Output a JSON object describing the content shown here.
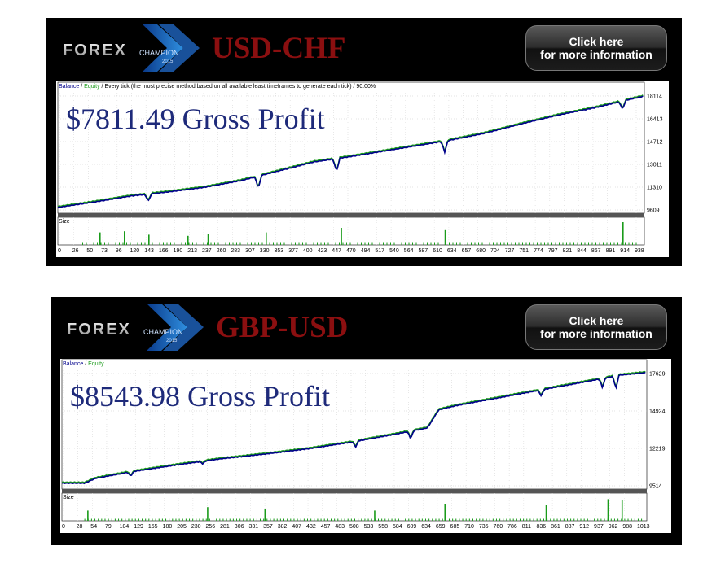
{
  "banners": [
    {
      "logo_text": "FOREX",
      "logo_sub": "CHAMPION",
      "logo_year": "2015",
      "pair": "USD-CHF",
      "cta_line1": "Click here",
      "cta_line2": "for more information",
      "header_balance": "Balance",
      "header_equity": "Equity",
      "header_rest": " / Every tick (the most precise method based on all available least timeframes to generate each tick) / 90.00%",
      "gross_profit": "$7811.49 Gross Profit",
      "size_label": "Size"
    },
    {
      "logo_text": "FOREX",
      "logo_sub": "CHAMPION",
      "logo_year": "2015",
      "pair": "GBP-USD",
      "cta_line1": "Click here",
      "cta_line2": "for more information",
      "header_balance": "Balance",
      "header_equity": "Equity",
      "header_rest": "",
      "gross_profit": "$8543.98 Gross Profit",
      "size_label": "Size"
    }
  ],
  "colors": {
    "balance": "#00008b",
    "equity": "#1a9b1a",
    "size_bar": "#1a9b1a",
    "pair": "#8b0f10",
    "gross_profit": "#1e2a7a"
  },
  "chart_data": [
    {
      "type": "line",
      "ylim": [
        9609,
        18114
      ],
      "y_ticks": [
        "18114",
        "16413",
        "14712",
        "13011",
        "11310",
        "9609"
      ],
      "x_ticks": [
        "0",
        "26",
        "50",
        "73",
        "96",
        "120",
        "143",
        "166",
        "190",
        "213",
        "237",
        "260",
        "283",
        "307",
        "330",
        "353",
        "377",
        "400",
        "423",
        "447",
        "470",
        "494",
        "517",
        "540",
        "564",
        "587",
        "610",
        "634",
        "657",
        "680",
        "704",
        "727",
        "751",
        "774",
        "797",
        "821",
        "844",
        "867",
        "891",
        "914",
        "938"
      ],
      "xlim": [
        0,
        960
      ],
      "series": [
        {
          "name": "Balance",
          "x": [
            0,
            60,
            120,
            180,
            240,
            300,
            330,
            360,
            420,
            480,
            540,
            600,
            640,
            700,
            760,
            820,
            880,
            930,
            960
          ],
          "values": [
            9800,
            10200,
            10650,
            10950,
            11300,
            11800,
            12150,
            12500,
            13200,
            13600,
            14050,
            14500,
            14800,
            15350,
            16050,
            16700,
            17250,
            17800,
            18114
          ]
        }
      ],
      "drawdowns": [
        {
          "x": 148,
          "low": 10250
        },
        {
          "x": 328,
          "low": 11200
        },
        {
          "x": 456,
          "low": 12450
        },
        {
          "x": 633,
          "low": 13900
        },
        {
          "x": 924,
          "low": 17100
        }
      ],
      "size_spikes": [
        {
          "x": 68,
          "h": 0.55
        },
        {
          "x": 108,
          "h": 0.6
        },
        {
          "x": 148,
          "h": 0.45
        },
        {
          "x": 212,
          "h": 0.4
        },
        {
          "x": 245,
          "h": 0.5
        },
        {
          "x": 340,
          "h": 0.55
        },
        {
          "x": 463,
          "h": 0.75
        },
        {
          "x": 633,
          "h": 0.65
        },
        {
          "x": 924,
          "h": 1.0
        }
      ]
    },
    {
      "type": "line",
      "ylim": [
        9514,
        17629
      ],
      "y_ticks": [
        "17629",
        "14924",
        "12219",
        "9514"
      ],
      "x_ticks": [
        "0",
        "28",
        "54",
        "79",
        "104",
        "129",
        "155",
        "180",
        "205",
        "230",
        "256",
        "281",
        "306",
        "331",
        "357",
        "382",
        "407",
        "432",
        "457",
        "483",
        "508",
        "533",
        "558",
        "584",
        "609",
        "634",
        "659",
        "685",
        "710",
        "735",
        "760",
        "786",
        "811",
        "836",
        "861",
        "887",
        "912",
        "937",
        "962",
        "988",
        "1013"
      ],
      "xlim": [
        0,
        1040
      ],
      "series": [
        {
          "name": "Balance",
          "x": [
            0,
            40,
            60,
            120,
            200,
            280,
            360,
            440,
            520,
            600,
            650,
            670,
            700,
            780,
            860,
            940,
            990,
            1040
          ],
          "values": [
            9700,
            9700,
            10050,
            10500,
            11000,
            11450,
            11800,
            12200,
            12700,
            13300,
            13700,
            15000,
            15300,
            15900,
            16500,
            17100,
            17500,
            17700
          ]
        }
      ],
      "drawdowns": [
        {
          "x": 122,
          "low": 10200
        },
        {
          "x": 250,
          "low": 11100
        },
        {
          "x": 522,
          "low": 12300
        },
        {
          "x": 620,
          "low": 12900
        },
        {
          "x": 852,
          "low": 16000
        },
        {
          "x": 961,
          "low": 16600
        },
        {
          "x": 985,
          "low": 16500
        }
      ],
      "size_spikes": [
        {
          "x": 45,
          "h": 0.45
        },
        {
          "x": 258,
          "h": 0.6
        },
        {
          "x": 360,
          "h": 0.5
        },
        {
          "x": 555,
          "h": 0.45
        },
        {
          "x": 680,
          "h": 0.75
        },
        {
          "x": 860,
          "h": 0.7
        },
        {
          "x": 970,
          "h": 0.95
        },
        {
          "x": 995,
          "h": 0.9
        }
      ]
    }
  ]
}
